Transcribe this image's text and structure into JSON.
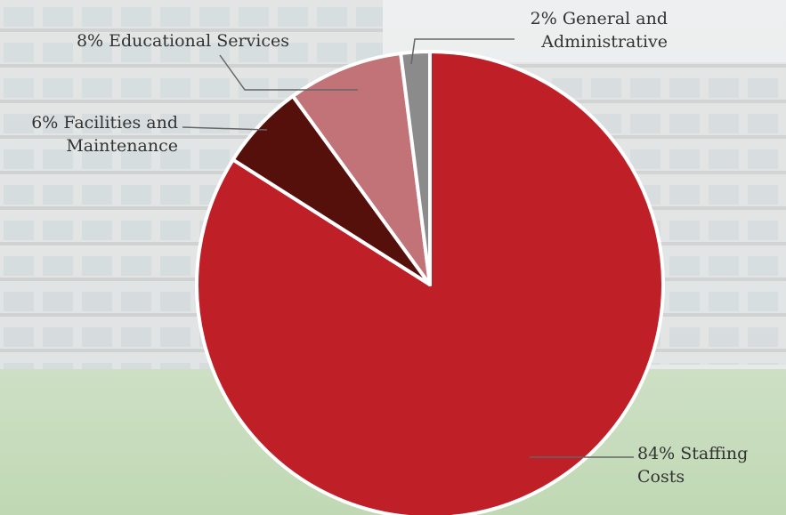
{
  "chart_data": {
    "type": "pie",
    "categories": [
      "Staffing Costs",
      "Facilities and Maintenance",
      "Educational Services",
      "General and Administrative"
    ],
    "values": [
      84,
      6,
      8,
      2
    ],
    "value_labels": [
      "84%",
      "6%",
      "8%",
      "2%"
    ],
    "colors": [
      "#bf1f26",
      "#56100b",
      "#c27378",
      "#8b8b8b"
    ]
  }
}
